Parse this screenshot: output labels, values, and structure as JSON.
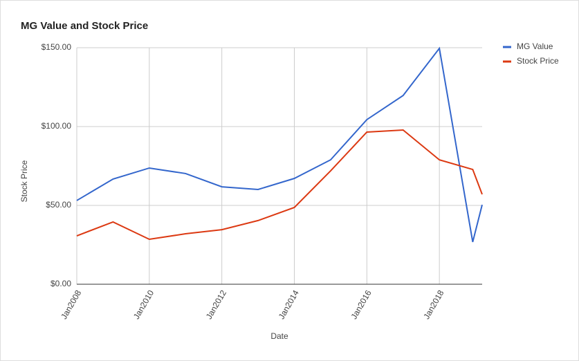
{
  "chart_data": {
    "type": "line",
    "title": "MG Value and Stock Price",
    "x_label": "Date",
    "y_label": "Stock Price",
    "x": [
      2008,
      2009,
      2010,
      2011,
      2012,
      2013,
      2014,
      2015,
      2016,
      2017,
      2018,
      2018.92,
      2019.18
    ],
    "series": [
      {
        "name": "MG Value",
        "color": "#3366cc",
        "values": [
          53.1,
          66.7,
          73.7,
          70.2,
          61.8,
          60.1,
          67.1,
          78.9,
          104.4,
          119.7,
          149.6,
          26.8,
          50.4
        ]
      },
      {
        "name": "Stock Price",
        "color": "#dc3912",
        "values": [
          30.7,
          39.5,
          28.5,
          32.0,
          34.6,
          40.4,
          48.7,
          71.9,
          96.5,
          97.8,
          78.9,
          72.8,
          57.0
        ]
      }
    ],
    "xlim": [
      2008,
      2019.18
    ],
    "xticks": [
      {
        "value": 2008,
        "label": "Jan2008"
      },
      {
        "value": 2010,
        "label": "Jan2010"
      },
      {
        "value": 2012,
        "label": "Jan2012"
      },
      {
        "value": 2014,
        "label": "Jan2014"
      },
      {
        "value": 2016,
        "label": "Jan2016"
      },
      {
        "value": 2018,
        "label": "Jan2018"
      }
    ],
    "ylim": [
      0,
      150
    ],
    "yticks": [
      {
        "value": 0,
        "label": "$0.00"
      },
      {
        "value": 50,
        "label": "$50.00"
      },
      {
        "value": 100,
        "label": "$100.00"
      },
      {
        "value": 150,
        "label": "$150.00"
      }
    ],
    "grid": true,
    "legend": "right"
  }
}
